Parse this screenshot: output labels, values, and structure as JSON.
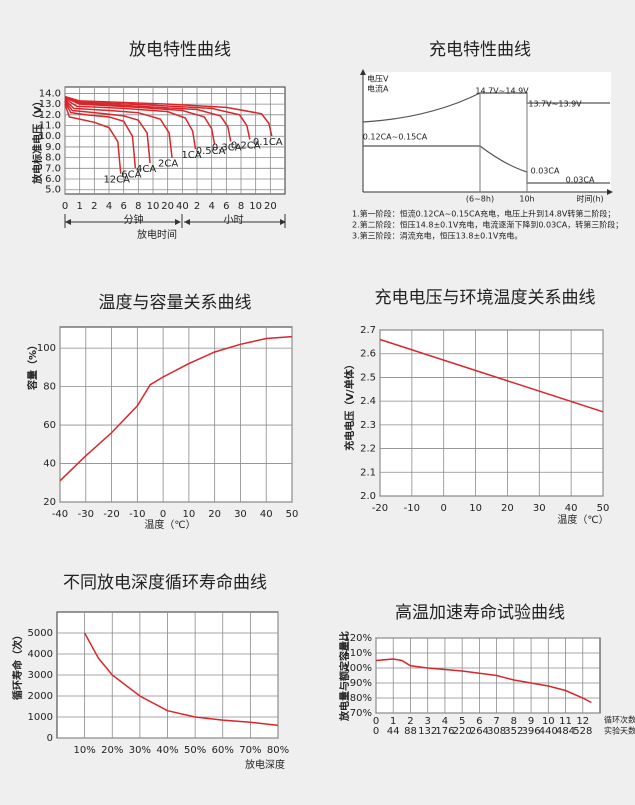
{
  "chart_data": [
    {
      "type": "line",
      "title": "放电特性曲线",
      "ylabel": "放电标准电压（V）",
      "xlabel": "放电时间",
      "x_group_labels": [
        "分钟",
        "小时"
      ],
      "xlim": [
        0,
        15
      ],
      "ylim": [
        4.6,
        14.6
      ],
      "xticks": [
        0,
        1,
        2,
        {
          "value": 3,
          "label": "4"
        },
        {
          "value": 4,
          "label": "6"
        },
        {
          "value": 5,
          "label": "8"
        },
        {
          "value": 6,
          "label": "10"
        },
        {
          "value": 7,
          "label": "20"
        },
        {
          "value": 8,
          "label": "40"
        },
        {
          "value": 9,
          "label": "2"
        },
        {
          "value": 10,
          "label": "4"
        },
        {
          "value": 11,
          "label": "6"
        },
        {
          "value": 12,
          "label": "8"
        },
        {
          "value": 13,
          "label": "10"
        },
        {
          "value": 14,
          "label": "20"
        }
      ],
      "yticks": [
        {
          "value": 14,
          "label": "14.0"
        },
        {
          "value": 13,
          "label": "13.0"
        },
        {
          "value": 12,
          "label": "12.0"
        },
        {
          "value": 11,
          "label": "11.0"
        },
        {
          "value": 10,
          "label": "10.0"
        },
        {
          "value": 9,
          "label": "9.0"
        },
        {
          "value": 8,
          "label": "8.0"
        },
        {
          "value": 7,
          "label": "7.0"
        },
        {
          "value": 6,
          "label": "6.0"
        },
        {
          "value": 5,
          "label": "5.0"
        }
      ],
      "grid": true,
      "series": [
        {
          "name": "12CA",
          "color": "#d9262b",
          "x": [
            0,
            0.3,
            1,
            2,
            3,
            3.6,
            3.8
          ],
          "values": [
            13.0,
            11.8,
            11.6,
            11.3,
            10.8,
            9.5,
            6.5
          ]
        },
        {
          "name": "6CA",
          "color": "#d9262b",
          "x": [
            0,
            0.4,
            1.5,
            3,
            4,
            4.6,
            4.8
          ],
          "values": [
            13.2,
            12.2,
            12.0,
            11.8,
            11.4,
            10.0,
            7.0
          ]
        },
        {
          "name": "4CA",
          "color": "#d9262b",
          "x": [
            0,
            0.5,
            2,
            4,
            5,
            5.6,
            5.8
          ],
          "values": [
            13.3,
            12.4,
            12.2,
            11.9,
            11.5,
            10.3,
            7.5
          ]
        },
        {
          "name": "2CA",
          "color": "#d9262b",
          "x": [
            0,
            0.6,
            3,
            5,
            6.5,
            7.1,
            7.3
          ],
          "values": [
            13.4,
            12.6,
            12.4,
            12.2,
            11.6,
            10.3,
            8.0
          ]
        },
        {
          "name": "1CA",
          "color": "#d9262b",
          "x": [
            0,
            0.8,
            4,
            7,
            8.2,
            8.7,
            8.9
          ],
          "values": [
            13.5,
            12.8,
            12.6,
            12.3,
            11.7,
            10.5,
            8.8
          ]
        },
        {
          "name": "0.5CA",
          "color": "#d9262b",
          "x": [
            0,
            1,
            5,
            8,
            9.5,
            10,
            10.2
          ],
          "values": [
            13.6,
            13.0,
            12.7,
            12.4,
            11.8,
            10.7,
            9.2
          ]
        },
        {
          "name": "0.3CA",
          "color": "#d9262b",
          "x": [
            0,
            1,
            5,
            9,
            10.6,
            11.1,
            11.3
          ],
          "values": [
            13.6,
            13.1,
            12.8,
            12.5,
            11.9,
            10.9,
            9.5
          ]
        },
        {
          "name": "0.2CA",
          "color": "#d9262b",
          "x": [
            0,
            1,
            6,
            10,
            11.9,
            12.4,
            12.6
          ],
          "values": [
            13.7,
            13.2,
            12.9,
            12.6,
            12.0,
            11.0,
            9.7
          ]
        },
        {
          "name": "0.1CA",
          "color": "#d9262b",
          "x": [
            0,
            1,
            7,
            11,
            13.4,
            13.9,
            14.1
          ],
          "values": [
            13.7,
            13.3,
            13.0,
            12.7,
            12.1,
            11.2,
            10.0
          ]
        }
      ]
    },
    {
      "type": "schematic",
      "title": "充电特性曲线",
      "annotations": [
        "电压V",
        "电流A",
        "14.7V~14.9V",
        "13.7V~13.9V",
        "0.12CA~0.15CA",
        "0.03CA",
        "0.03CA",
        "(6~8h)",
        "10h",
        "时间(h)"
      ],
      "notes": [
        "1.第一阶段：恒流0.12CA~0.15CA充电，电压上升到14.8V转第二阶段；",
        "2.第二阶段：恒压14.8±0.1V充电，电流逐渐下降到0.03CA，转第三阶段；",
        "3.第三阶段：涓流充电，恒压13.8±0.1V充电。"
      ]
    },
    {
      "type": "line",
      "title": "温度与容量关系曲线",
      "xlabel": "温度（℃）",
      "ylabel": "容量（%）",
      "xlim": [
        -40,
        50
      ],
      "ylim": [
        20,
        111
      ],
      "xticks": [
        -40,
        -30,
        -20,
        -10,
        0,
        10,
        20,
        30,
        40,
        50
      ],
      "yticks": [
        20,
        40,
        60,
        80,
        100
      ],
      "grid": true,
      "series": [
        {
          "color": "#d9262b",
          "x": [
            -40,
            -30,
            -20,
            -10,
            -5,
            0,
            10,
            20,
            30,
            40,
            50
          ],
          "values": [
            31,
            44,
            56,
            70,
            81,
            85,
            92,
            98,
            102,
            105,
            106
          ]
        }
      ]
    },
    {
      "type": "line",
      "title": "充电电压与环境温度关系曲线",
      "xlabel": "温度（℃）",
      "ylabel": "充电电压（V/单体）",
      "xlim": [
        -20,
        50
      ],
      "ylim": [
        2.0,
        2.7
      ],
      "xticks": [
        -20,
        -10,
        0,
        10,
        20,
        30,
        40,
        50
      ],
      "yticks": [
        {
          "value": 2,
          "label": "2.0"
        },
        2.1,
        2.2,
        2.3,
        2.4,
        2.5,
        2.6,
        2.7
      ],
      "grid": true,
      "series": [
        {
          "color": "#d9262b",
          "x": [
            -20,
            50
          ],
          "values": [
            2.66,
            2.355
          ]
        }
      ]
    },
    {
      "type": "line",
      "title": "不同放电深度循环寿命曲线",
      "xlabel": "放电深度",
      "ylabel": "循环寿命（次）",
      "xlim": [
        0,
        80
      ],
      "ylim": [
        0,
        6000
      ],
      "xticks": [
        {
          "value": 10,
          "label": "10%"
        },
        {
          "value": 20,
          "label": "20%"
        },
        {
          "value": 30,
          "label": "30%"
        },
        {
          "value": 40,
          "label": "40%"
        },
        {
          "value": 50,
          "label": "50%"
        },
        {
          "value": 60,
          "label": "60%"
        },
        {
          "value": 70,
          "label": "70%"
        },
        {
          "value": 80,
          "label": "80%"
        }
      ],
      "yticks": [
        0,
        1000,
        2000,
        3000,
        4000,
        5000
      ],
      "grid": true,
      "series": [
        {
          "color": "#d9262b",
          "x": [
            10,
            15,
            20,
            30,
            40,
            50,
            60,
            70,
            80
          ],
          "values": [
            5000,
            3800,
            3000,
            2000,
            1300,
            1000,
            850,
            750,
            600
          ]
        }
      ]
    },
    {
      "type": "line",
      "title": "高温加速寿命试验曲线",
      "xlabel": "循环次数",
      "x2label": "实验天数",
      "ylabel": "放电量与额定容量比",
      "xlim": [
        0,
        13
      ],
      "x2lim": [
        0,
        572
      ],
      "ylim": [
        70,
        120
      ],
      "xticks": [
        0,
        1,
        2,
        3,
        4,
        5,
        6,
        7,
        8,
        9,
        10,
        11,
        12
      ],
      "x2ticks": [
        0,
        44,
        88,
        132,
        176,
        220,
        264,
        308,
        352,
        396,
        440,
        484,
        528
      ],
      "yticks": [
        {
          "value": 70,
          "label": "70%"
        },
        {
          "value": 80,
          "label": "80%"
        },
        {
          "value": 90,
          "label": "90%"
        },
        {
          "value": 100,
          "label": "100%"
        },
        {
          "value": 110,
          "label": "110%"
        },
        {
          "value": 120,
          "label": "120%"
        }
      ],
      "grid": true,
      "series": [
        {
          "color": "#d9262b",
          "x": [
            0,
            1,
            1.5,
            2,
            3,
            4,
            5,
            6,
            7,
            8,
            9,
            10,
            11,
            12,
            12.5
          ],
          "values": [
            105,
            106,
            105,
            101.5,
            100,
            99,
            98,
            96.5,
            95,
            92,
            90,
            88,
            85,
            80,
            77
          ]
        }
      ]
    }
  ]
}
